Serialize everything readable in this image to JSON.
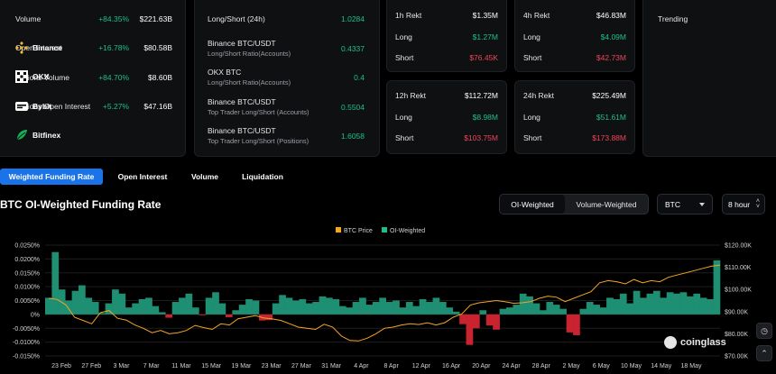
{
  "market_stats": [
    {
      "label": "Volume",
      "change": "+84.35%",
      "value": "$221.63B"
    },
    {
      "label": "Open Interest",
      "change": "+16.78%",
      "value": "$80.58B"
    },
    {
      "label": "Options Volume",
      "change": "+84.70%",
      "value": "$8.60B"
    },
    {
      "label": "Options Open Interest",
      "change": "+5.27%",
      "value": "$47.16B"
    }
  ],
  "ratios": [
    {
      "label": "Long/Short (24h)",
      "sub": "",
      "value": "1.0284"
    },
    {
      "label": "Binance BTC/USDT",
      "sub": "Long/Short Ratio(Accounts)",
      "value": "0.4337"
    },
    {
      "label": "OKX BTC",
      "sub": "Long/Short Ratio(Accounts)",
      "value": "0.4"
    },
    {
      "label": "Binance BTC/USDT",
      "sub": "Top Trader Long/Short (Accounts)",
      "value": "0.5504"
    },
    {
      "label": "Binance BTC/USDT",
      "sub": "Top Trader Long/Short (Positions)",
      "value": "1.6058"
    }
  ],
  "rekt": [
    {
      "title": "1h Rekt",
      "total": "$1.35M",
      "long_label": "Long",
      "long": "$1.27M",
      "short_label": "Short",
      "short": "$76.45K"
    },
    {
      "title": "4h Rekt",
      "total": "$46.83M",
      "long_label": "Long",
      "long": "$4.09M",
      "short_label": "Short",
      "short": "$42.73M"
    },
    {
      "title": "12h Rekt",
      "total": "$112.72M",
      "long_label": "Long",
      "long": "$8.98M",
      "short_label": "Short",
      "short": "$103.75M"
    },
    {
      "title": "24h Rekt",
      "total": "$225.49M",
      "long_label": "Long",
      "long": "$51.61M",
      "short_label": "Short",
      "short": "$173.88M"
    }
  ],
  "trending": {
    "title": "Trending",
    "items": [
      {
        "name": "Binance",
        "icon": "binance-logo-icon"
      },
      {
        "name": "OKX",
        "icon": "okx-logo-icon"
      },
      {
        "name": "Bybit",
        "icon": "bybit-logo-icon"
      },
      {
        "name": "Bitfinex",
        "icon": "bitfinex-logo-icon"
      }
    ]
  },
  "tabs": [
    "Weighted Funding Rate",
    "Open Interest",
    "Volume",
    "Liquidation"
  ],
  "active_tab": 0,
  "chart_header": {
    "title": "BTC OI-Weighted Funding Rate",
    "weighting_options": [
      "OI-Weighted",
      "Volume-Weighted"
    ],
    "active_weighting": 0,
    "coin_select": "BTC",
    "interval_select": "8 hour"
  },
  "colors": {
    "accent": "#1a73e8",
    "positive": "#1fbf8b",
    "negative": "#f0445a",
    "price_line": "#f5a623",
    "funding_area": "#1f8f73",
    "funding_negative": "#c8232f"
  },
  "watermark": "coinglass",
  "chart_data": {
    "type": "area",
    "legend": [
      "BTC Price",
      "OI-Weighted"
    ],
    "legend_position": "top-center",
    "y_left_ticks": [
      "0.0250%",
      "0.0200%",
      "0.0150%",
      "0.0100%",
      "0.0050%",
      "0%",
      "-0.0050%",
      "-0.0100%",
      "-0.0150%"
    ],
    "y_left_range": [
      -0.015,
      0.025
    ],
    "y_right_ticks": [
      "$120.00K",
      "$110.00K",
      "$100.00K",
      "$90.00K",
      "$80.00K",
      "$70.00K"
    ],
    "y_right_range": [
      70000,
      120000
    ],
    "x_ticks": [
      "23 Feb",
      "27 Feb",
      "3 Mar",
      "7 Mar",
      "11 Mar",
      "15 Mar",
      "19 Mar",
      "23 Mar",
      "27 Mar",
      "31 Mar",
      "4 Apr",
      "8 Apr",
      "12 Apr",
      "16 Apr",
      "20 Apr",
      "24 Apr",
      "28 Apr",
      "2 May",
      "6 May",
      "10 May",
      "14 May",
      "18 May"
    ],
    "series": [
      {
        "name": "OI-Weighted",
        "unit": "%",
        "values": [
          0.006,
          0.0225,
          0.009,
          0.005,
          0.0085,
          0.0105,
          0.006,
          0.0045,
          0.0005,
          0.004,
          0.009,
          0.0075,
          0.0025,
          0.004,
          0.0055,
          0.006,
          0.003,
          0.0008,
          -0.0012,
          0.0045,
          0.006,
          0.0075,
          0.0025,
          -0.0003,
          0.006,
          0.008,
          0.004,
          -0.001,
          0.0015,
          0.0035,
          0.0055,
          0.005,
          -0.0022,
          -0.002,
          0.004,
          0.007,
          0.006,
          0.005,
          0.0055,
          0.004,
          0.0045,
          0.0065,
          0.006,
          0.0055,
          0.003,
          0.0025,
          0.0045,
          0.006,
          0.0035,
          0.0045,
          0.006,
          0.0045,
          0.005,
          0.0025,
          0.0045,
          0.003,
          0.0055,
          0.0045,
          0.006,
          0.0045,
          0.0025,
          0.001,
          -0.0035,
          -0.011,
          -0.005,
          0.0015,
          -0.004,
          -0.0055,
          0.002,
          0.0025,
          0.0035,
          0.0075,
          0.0065,
          0.004,
          0.0015,
          0.0045,
          0.0035,
          0.002,
          -0.0065,
          -0.0075,
          0.002,
          0.0045,
          0.0035,
          0.0025,
          0.006,
          0.0055,
          0.0075,
          0.004,
          0.0085,
          0.006,
          0.0075,
          0.0085,
          0.006,
          0.008,
          0.0075,
          0.008,
          0.0065,
          0.0075,
          0.006,
          0.0055,
          0.0195
        ]
      },
      {
        "name": "BTC Price",
        "unit": "USD",
        "values": [
          96000,
          95500,
          93000,
          87500,
          86000,
          84500,
          89500,
          90500,
          87000,
          86200,
          84000,
          82500,
          80500,
          81500,
          80000,
          80500,
          81500,
          83800,
          82800,
          82000,
          84500,
          84000,
          86800,
          87500,
          88200,
          87100,
          86700,
          86000,
          84500,
          83000,
          82500,
          82000,
          84300,
          83000,
          79000,
          77000,
          76800,
          78000,
          80000,
          82500,
          83000,
          84000,
          84500,
          84200,
          85000,
          84000,
          85000,
          87500,
          89000,
          93000,
          94000,
          94500,
          95000,
          94500,
          93800,
          94000,
          94500,
          96000,
          97000,
          96500,
          94500,
          96000,
          97500,
          99000,
          103000,
          104000,
          103500,
          102500,
          104500,
          103000,
          104000,
          103500,
          105500,
          106500,
          107500,
          108500,
          109500,
          110500,
          111000
        ]
      }
    ]
  }
}
